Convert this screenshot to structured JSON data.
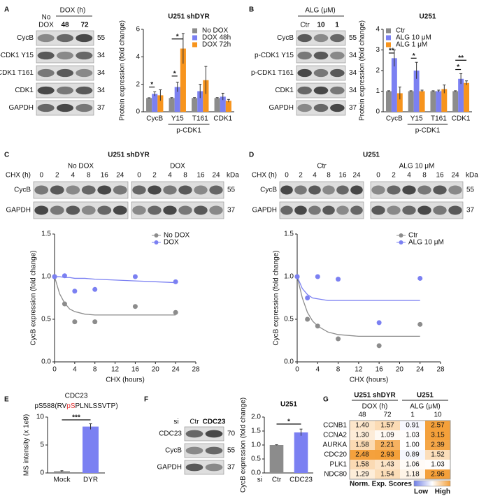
{
  "panel_labels": [
    "A",
    "B",
    "C",
    "D",
    "E",
    "F",
    "G"
  ],
  "blots": [
    {
      "header": [
        {
          "text": "No"
        },
        {
          "text": "DOX"
        },
        {
          "text": "DOX (h)"
        },
        {
          "text": "48",
          "color": "#5a6cf0"
        },
        {
          "text": "72",
          "color": "#f7941d"
        }
      ],
      "rows": [
        "CycB",
        "p-CDK1 Y15",
        "p-CDK1 T161",
        "CDK1",
        "GAPDH"
      ],
      "kda": [
        "55",
        "34",
        "34",
        "34",
        "37"
      ]
    },
    {
      "header": [
        {
          "text": "ALG (μM)"
        },
        {
          "text": "Ctr"
        },
        {
          "text": "10",
          "color": "#5a6cf0"
        },
        {
          "text": "1",
          "color": "#f7941d"
        }
      ],
      "rows": [
        "CycB",
        "p-CDK1 Y15",
        "p-CDK1 T161",
        "CDK1",
        "GAPDH"
      ],
      "kda": [
        "55",
        "34",
        "34",
        "34",
        "37"
      ]
    },
    {
      "title": "U251 shDYR",
      "groups": [
        "No DOX",
        "DOX"
      ],
      "time_label": "CHX (h)",
      "times": [
        "0",
        "2",
        "4",
        "8",
        "16",
        "24"
      ],
      "text_color": "#5a6cf0",
      "kda_label": "kDa",
      "rows": [
        "CycB",
        "GAPDH"
      ],
      "kda": [
        "55",
        "37"
      ]
    },
    {
      "title": "U251",
      "groups": [
        "Ctr",
        "ALG 10 μM"
      ],
      "time_label": "CHX (h)",
      "times": [
        "0",
        "2",
        "4",
        "8",
        "16",
        "24"
      ],
      "text_color": "#5a6cf0",
      "kda_label": "kDa",
      "rows": [
        "CycB",
        "GAPDH"
      ],
      "kda": [
        "55",
        "37"
      ]
    },
    {
      "header": [
        {
          "text": "si"
        },
        {
          "text": "Ctr"
        },
        {
          "text": "CDC23",
          "color": "#5a6cf0"
        }
      ],
      "rows": [
        "CDC23",
        "CycB",
        "GAPDH"
      ],
      "kda": [
        "70",
        "55",
        "37"
      ]
    }
  ],
  "chart_data": [
    {
      "type": "bar",
      "title": "U251 shDYR",
      "ylabel": "Protein expression (fold change)",
      "categories": [
        "CycB",
        "Y15",
        "T161",
        "CDK1"
      ],
      "group_label": "p-CDK1",
      "series": [
        {
          "name": "No DOX",
          "color": "#8c8c8c",
          "values": [
            1,
            1,
            1,
            1
          ],
          "errors": [
            0.02,
            0.03,
            0.03,
            0.03
          ]
        },
        {
          "name": "DOX 48h",
          "color": "#7b80f2",
          "values": [
            1.3,
            1.8,
            1.5,
            1.1
          ],
          "errors": [
            0.15,
            0.35,
            0.5,
            0.25
          ]
        },
        {
          "name": "DOX 72h",
          "color": "#f7941d",
          "values": [
            1.2,
            4.6,
            2.3,
            0.8
          ],
          "errors": [
            0.4,
            1.1,
            1.0,
            0.1
          ]
        }
      ],
      "ylim": [
        0,
        6
      ],
      "yticks": [
        0,
        2,
        4,
        6
      ],
      "legend": "upper right",
      "annotations": [
        "*",
        "*",
        "*"
      ]
    },
    {
      "type": "bar",
      "title": "U251",
      "ylabel": "Protein expression (fold change)",
      "categories": [
        "CycB",
        "Y15",
        "T161",
        "CDK1"
      ],
      "group_label": "p-CDK1",
      "series": [
        {
          "name": "Ctr",
          "color": "#8c8c8c",
          "values": [
            1,
            1,
            1,
            1
          ],
          "errors": [
            0.02,
            0.02,
            0.02,
            0.02
          ]
        },
        {
          "name": "ALG 10 μM",
          "color": "#7b80f2",
          "values": [
            2.6,
            2.0,
            1.0,
            1.6
          ],
          "errors": [
            0.4,
            0.4,
            0.05,
            0.25
          ]
        },
        {
          "name": "ALG 1 μM",
          "color": "#f7941d",
          "values": [
            0.9,
            1.0,
            1.1,
            1.4
          ],
          "errors": [
            0.3,
            0.05,
            0.2,
            0.1
          ]
        }
      ],
      "ylim": [
        0,
        4
      ],
      "yticks": [
        0,
        1,
        2,
        3,
        4
      ],
      "legend": "upper left",
      "annotations": [
        "**",
        "*",
        "*",
        "**"
      ]
    },
    {
      "type": "scatter",
      "ylabel": "CycB expression (fold change)",
      "xlabel": "CHX (hours)",
      "x": [
        0,
        2,
        4,
        8,
        16,
        24
      ],
      "fit_x": [
        0,
        1,
        2,
        3,
        4,
        6,
        8,
        12,
        16,
        20,
        24
      ],
      "series": [
        {
          "name": "No DOX",
          "color": "#8c8c8c",
          "values": [
            1.0,
            0.68,
            0.47,
            0.47,
            0.65,
            0.58
          ],
          "fit": [
            1.0,
            0.8,
            0.69,
            0.62,
            0.59,
            0.56,
            0.55,
            0.55,
            0.55,
            0.55,
            0.55
          ]
        },
        {
          "name": "DOX",
          "color": "#7b80f2",
          "values": [
            1.0,
            1.01,
            0.83,
            0.85,
            1.0,
            0.94
          ],
          "fit": [
            1.0,
            1.0,
            0.99,
            0.99,
            0.98,
            0.98,
            0.97,
            0.96,
            0.95,
            0.94,
            0.93
          ]
        }
      ],
      "xlim": [
        0,
        28
      ],
      "xticks": [
        0,
        4,
        8,
        12,
        16,
        20,
        24,
        28
      ],
      "ylim": [
        0,
        1.5
      ],
      "yticks": [
        {
          "value": 0,
          "label": "0.0"
        },
        {
          "value": 0.5,
          "label": "0.5"
        },
        {
          "value": 1,
          "label": "1.0"
        },
        {
          "value": 1.5,
          "label": "1.5"
        }
      ],
      "legend": "upper right"
    },
    {
      "type": "scatter",
      "ylabel": "CycB expression (fold change)",
      "xlabel": "CHX (hours)",
      "x": [
        0,
        2,
        4,
        8,
        16,
        24
      ],
      "fit_x": [
        0,
        1,
        2,
        3,
        4,
        6,
        8,
        12,
        16,
        20,
        24
      ],
      "series": [
        {
          "name": "Ctr",
          "color": "#8c8c8c",
          "values": [
            1.0,
            0.5,
            0.42,
            0.27,
            0.19,
            0.44
          ],
          "fit": [
            1.0,
            0.75,
            0.58,
            0.48,
            0.42,
            0.35,
            0.32,
            0.3,
            0.3,
            0.3,
            0.3
          ]
        },
        {
          "name": "ALG 10 μM",
          "color": "#7b80f2",
          "values": [
            1.0,
            0.75,
            1.0,
            0.97,
            0.46,
            0.98
          ],
          "fit": [
            1.0,
            0.86,
            0.79,
            0.75,
            0.74,
            0.72,
            0.72,
            0.72,
            0.72,
            0.72,
            0.72
          ]
        }
      ],
      "xlim": [
        0,
        28
      ],
      "xticks": [
        0,
        4,
        8,
        12,
        16,
        20,
        24,
        28
      ],
      "ylim": [
        0,
        1.5
      ],
      "yticks": [
        {
          "value": 0,
          "label": "0.0"
        },
        {
          "value": 0.5,
          "label": "0.5"
        },
        {
          "value": 1,
          "label": "1.0"
        },
        {
          "value": 1.5,
          "label": "1.5"
        }
      ],
      "legend": "upper right"
    },
    {
      "type": "bar",
      "title": "CDC23",
      "subtitle": [
        {
          "text": "pS588(RV"
        },
        {
          "text": "pS",
          "color": "#e03030"
        },
        {
          "text": "PLNLSSVTP)"
        }
      ],
      "ylabel": "MS intensity (x 1e9)",
      "categories": [
        "Mock",
        "DYR"
      ],
      "values": [
        0.3,
        8.3
      ],
      "errors": [
        0.1,
        0.5
      ],
      "colors": [
        "#8c8c8c",
        "#7b80f2"
      ],
      "ylim": [
        0,
        10
      ],
      "yticks": [
        0,
        5,
        10
      ],
      "annotations": [
        "***"
      ]
    },
    {
      "type": "bar",
      "title": "U251",
      "ylabel": "CycB expression (fold change)",
      "category_prefix": "si",
      "categories": [
        "Ctr",
        "CDC23"
      ],
      "values": [
        1.0,
        1.45
      ],
      "errors": [
        0.01,
        0.12
      ],
      "colors": [
        "#8c8c8c",
        "#7b80f2"
      ],
      "ylim": [
        0,
        2
      ],
      "yticks": [
        {
          "value": 0,
          "label": "0.0"
        },
        {
          "value": 0.5,
          "label": "0.5"
        },
        {
          "value": 1,
          "label": "1.0"
        },
        {
          "value": 1.5,
          "label": "1.5"
        },
        {
          "value": 2,
          "label": "2.0"
        }
      ],
      "annotations": [
        "*"
      ]
    },
    {
      "type": "heatmap",
      "groups": [
        "U251 shDYR",
        "U251"
      ],
      "group_subtitles": [
        "DOX (h)",
        "ALG (μM)"
      ],
      "columns": [
        "48",
        "72",
        "1",
        "10"
      ],
      "rows": [
        "CCNB1",
        "CCNA2",
        "AURKA",
        "CDC20",
        "PLK1",
        "NDC80"
      ],
      "values": [
        [
          1.4,
          1.57,
          0.91,
          2.57
        ],
        [
          1.3,
          1.09,
          1.03,
          3.15
        ],
        [
          1.58,
          2.21,
          1.0,
          2.39
        ],
        [
          2.48,
          2.93,
          0.89,
          1.52
        ],
        [
          1.58,
          1.43,
          1.06,
          1.03
        ],
        [
          1.29,
          1.54,
          1.18,
          2.96
        ]
      ],
      "value_labels": [
        [
          "1.40",
          "1.57",
          "0.91",
          "2.57"
        ],
        [
          "1.30",
          "1.09",
          "1.03",
          "3.15"
        ],
        [
          "1.58",
          "2.21",
          "1.00",
          "2.39"
        ],
        [
          "2.48",
          "2.93",
          "0.89",
          "1.52"
        ],
        [
          "1.58",
          "1.43",
          "1.06",
          "1.03"
        ],
        [
          "1.29",
          "1.54",
          "1.18",
          "2.96"
        ]
      ],
      "colorbar_label": "Norm. Exp. Scores",
      "colorbar_ticks": [
        "Low",
        "High"
      ],
      "colors": [
        "#6f7fe6",
        "#ffffff",
        "#f4a03a"
      ],
      "vlim": [
        -0.5,
        2.5
      ]
    }
  ]
}
